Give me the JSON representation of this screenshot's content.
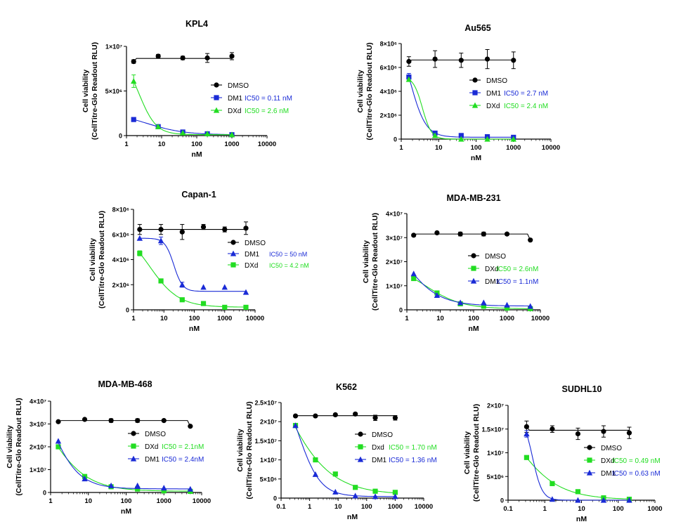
{
  "chart_data": [
    {
      "type": "scatter",
      "title": "KPL4",
      "xlabel": "nM",
      "ylabel": [
        "Cell viability",
        "(CellTitre-Glo Readout RLU)"
      ],
      "xscale": "log",
      "xticks": [
        1,
        10,
        100,
        1000,
        10000
      ],
      "xtick_labels": [
        "1",
        "10",
        "100",
        "1000",
        "10000"
      ],
      "yticks": [
        0,
        5000000,
        10000000
      ],
      "ytick_labels": [
        "0",
        "5×10⁶",
        "1×10⁷"
      ],
      "ylim": [
        0,
        10000000
      ],
      "legend_position": "right",
      "series": [
        {
          "name": "DMSO",
          "ic50": "",
          "color": "#000000",
          "marker": "circle",
          "x": [
            1.6,
            8,
            40,
            200,
            1000
          ],
          "y": [
            8300000,
            8900000,
            8700000,
            8700000,
            8900000
          ],
          "err": [
            200000,
            200000,
            200000,
            500000,
            400000
          ]
        },
        {
          "name": "DM1",
          "ic50": "IC50 = 0.11 nM",
          "color": "#1a2bd6",
          "marker": "square",
          "x": [
            1.6,
            8,
            40,
            200,
            1000
          ],
          "y": [
            1800000,
            1000000,
            400000,
            200000,
            100000
          ],
          "err": [
            0,
            0,
            0,
            0,
            0
          ]
        },
        {
          "name": "DXd",
          "ic50": "IC50 = 2.6 nM",
          "color": "#22dd22",
          "marker": "triangle",
          "x": [
            1.6,
            8,
            40,
            200,
            1000
          ],
          "y": [
            6100000,
            1000000,
            300000,
            200000,
            100000
          ],
          "err": [
            700000,
            0,
            0,
            0,
            0
          ]
        }
      ]
    },
    {
      "type": "scatter",
      "title": "Au565",
      "xlabel": "nM",
      "ylabel": [
        "Cell viability",
        "(CellTitre-Glo Readout RLU)"
      ],
      "xscale": "log",
      "xticks": [
        1,
        10,
        100,
        1000,
        10000
      ],
      "xtick_labels": [
        "1",
        "10",
        "100",
        "1000",
        "10000"
      ],
      "yticks": [
        0,
        2000000,
        4000000,
        6000000,
        8000000
      ],
      "ytick_labels": [
        "0",
        "2×10⁶",
        "4×10⁶",
        "6×10⁶",
        "8×10⁶"
      ],
      "ylim": [
        0,
        8000000
      ],
      "legend_position": "right",
      "series": [
        {
          "name": "DMSO",
          "ic50": "",
          "color": "#000000",
          "marker": "circle",
          "x": [
            1.6,
            8,
            40,
            200,
            1000
          ],
          "y": [
            6500000,
            6700000,
            6600000,
            6700000,
            6600000
          ],
          "err": [
            400000,
            700000,
            600000,
            800000,
            700000
          ]
        },
        {
          "name": "DM1",
          "ic50": "IC50 = 2.7 nM",
          "color": "#1a2bd6",
          "marker": "square",
          "x": [
            1.6,
            8,
            40,
            200,
            1000
          ],
          "y": [
            5200000,
            500000,
            300000,
            200000,
            150000
          ],
          "err": [
            300000,
            0,
            0,
            0,
            0
          ]
        },
        {
          "name": "DXd",
          "ic50": "IC50 = 2.4 nM",
          "color": "#22dd22",
          "marker": "triangle",
          "x": [
            1.6,
            8,
            40,
            200,
            1000
          ],
          "y": [
            5000000,
            300000,
            0,
            0,
            0
          ],
          "err": [
            0,
            0,
            0,
            0,
            0
          ]
        }
      ]
    },
    {
      "type": "scatter",
      "title": "Capan-1",
      "xlabel": "nM",
      "ylabel": [
        "Cell viability",
        "(CellTitre-Glo Readout RLU)"
      ],
      "xscale": "log",
      "xticks": [
        1,
        10,
        100,
        1000,
        10000
      ],
      "xtick_labels": [
        "1",
        "10",
        "100",
        "1000",
        "10000"
      ],
      "yticks": [
        0,
        2000000,
        4000000,
        6000000,
        8000000
      ],
      "ytick_labels": [
        "0",
        "2×10⁶",
        "4×10⁶",
        "6×10⁶",
        "8×10⁶"
      ],
      "ylim": [
        0,
        8000000
      ],
      "legend_position": "right",
      "series": [
        {
          "name": "DMSO",
          "ic50": "",
          "color": "#000000",
          "marker": "circle",
          "x": [
            1.6,
            8,
            40,
            200,
            1000,
            5000
          ],
          "y": [
            6400000,
            6400000,
            6200000,
            6600000,
            6400000,
            6500000
          ],
          "err": [
            400000,
            400000,
            600000,
            200000,
            200000,
            500000
          ]
        },
        {
          "name": "DM1",
          "ic50": "IC50 = 50 nM",
          "color": "#1a2bd6",
          "marker": "triangle",
          "x": [
            1.6,
            8,
            40,
            200,
            1000,
            5000
          ],
          "y": [
            5700000,
            5500000,
            2000000,
            1800000,
            1800000,
            1400000
          ],
          "err": [
            0,
            300000,
            200000,
            0,
            0,
            0
          ]
        },
        {
          "name": "DXd",
          "ic50": "IC50 = 4.2 nM",
          "color": "#22dd22",
          "marker": "square",
          "x": [
            1.6,
            8,
            40,
            200,
            1000,
            5000
          ],
          "y": [
            4500000,
            2300000,
            800000,
            500000,
            200000,
            200000
          ],
          "err": [
            200000,
            0,
            0,
            0,
            0,
            0
          ]
        }
      ]
    },
    {
      "type": "scatter",
      "title": "MDA-MB-231",
      "xlabel": "nM",
      "ylabel": [
        "Cell viability",
        "(CellTitre-Glo Readout RLU)"
      ],
      "xscale": "log",
      "xticks": [
        1,
        10,
        100,
        1000,
        10000
      ],
      "xtick_labels": [
        "1",
        "10",
        "100",
        "1000",
        "10000"
      ],
      "yticks": [
        0,
        10000000,
        20000000,
        30000000,
        40000000
      ],
      "ytick_labels": [
        "0",
        "1×10⁷",
        "2×10⁷",
        "3×10⁷",
        "4×10⁷"
      ],
      "ylim": [
        0,
        40000000
      ],
      "legend_position": "right",
      "series": [
        {
          "name": "DMSO",
          "ic50": "",
          "color": "#000000",
          "marker": "circle",
          "x": [
            1.6,
            8,
            40,
            200,
            1000,
            5000
          ],
          "y": [
            31000000,
            32000000,
            31500000,
            31500000,
            31500000,
            29000000
          ],
          "err": [
            0,
            0,
            800000,
            800000,
            0,
            0
          ]
        },
        {
          "name": "DXd",
          "ic50": "IC50 = 2.6nM",
          "color": "#22dd22",
          "marker": "square",
          "x": [
            1.6,
            8,
            40,
            200,
            1000,
            5000
          ],
          "y": [
            13000000,
            7000000,
            2500000,
            1500000,
            700000,
            500000
          ],
          "err": [
            0,
            0,
            0,
            0,
            0,
            0
          ]
        },
        {
          "name": "DM1",
          "ic50": "IC50 = 1.1nM",
          "color": "#1a2bd6",
          "marker": "triangle",
          "x": [
            1.6,
            8,
            40,
            200,
            1000,
            5000
          ],
          "y": [
            15000000,
            6000000,
            3000000,
            3000000,
            2000000,
            1500000
          ],
          "err": [
            0,
            0,
            0,
            0,
            0,
            0
          ]
        }
      ]
    },
    {
      "type": "scatter",
      "title": "MDA-MB-468",
      "xlabel": "nM",
      "ylabel": [
        "Cell viability",
        "(CellTitre-Glo Readout RLU)"
      ],
      "xscale": "log",
      "xticks": [
        1,
        10,
        100,
        1000,
        10000
      ],
      "xtick_labels": [
        "1",
        "10",
        "100",
        "1000",
        "10000"
      ],
      "yticks": [
        0,
        10000000,
        20000000,
        30000000,
        40000000
      ],
      "ytick_labels": [
        "0",
        "1×10⁷",
        "2×10⁷",
        "3×10⁷",
        "4×10⁷"
      ],
      "ylim": [
        0,
        40000000
      ],
      "legend_position": "right",
      "series": [
        {
          "name": "DMSO",
          "ic50": "",
          "color": "#000000",
          "marker": "circle",
          "x": [
            1.6,
            8,
            40,
            200,
            1000,
            5000
          ],
          "y": [
            31000000,
            32000000,
            31500000,
            31500000,
            31500000,
            29000000
          ],
          "err": [
            0,
            0,
            800000,
            800000,
            0,
            0
          ]
        },
        {
          "name": "DXd",
          "ic50": "IC50 = 2.1nM",
          "color": "#22dd22",
          "marker": "square",
          "x": [
            1.6,
            8,
            40,
            200,
            1000,
            5000
          ],
          "y": [
            20000000,
            7000000,
            2500000,
            1500000,
            700000,
            500000
          ],
          "err": [
            0,
            0,
            0,
            0,
            0,
            0
          ]
        },
        {
          "name": "DM1",
          "ic50": "IC50 = 2.4nM",
          "color": "#1a2bd6",
          "marker": "triangle",
          "x": [
            1.6,
            8,
            40,
            200,
            1000,
            5000
          ],
          "y": [
            22500000,
            6000000,
            3000000,
            3000000,
            2000000,
            1500000
          ],
          "err": [
            0,
            0,
            0,
            0,
            0,
            0
          ]
        }
      ]
    },
    {
      "type": "scatter",
      "title": "K562",
      "xlabel": "nM",
      "ylabel": [
        "Cell viability",
        "(CellTitre-Glo Readout RLU)"
      ],
      "xscale": "log",
      "xticks": [
        0.1,
        1,
        10,
        100,
        1000,
        10000
      ],
      "xtick_labels": [
        "0.1",
        "1",
        "10",
        "100",
        "1000",
        "10000"
      ],
      "yticks": [
        0,
        5000000,
        10000000,
        15000000,
        20000000,
        25000000
      ],
      "ytick_labels": [
        "0",
        "5×10⁶",
        "1×10⁷",
        "1.5×10⁷",
        "2×10⁷",
        "2.5×10⁷"
      ],
      "ylim": [
        0,
        25000000
      ],
      "legend_position": "right",
      "series": [
        {
          "name": "DMSO",
          "ic50": "",
          "color": "#000000",
          "marker": "circle",
          "x": [
            0.32,
            1.6,
            8,
            40,
            200,
            1000
          ],
          "y": [
            21500000,
            21500000,
            21800000,
            22000000,
            21000000,
            21000000
          ],
          "err": [
            0,
            0,
            300000,
            300000,
            700000,
            600000
          ]
        },
        {
          "name": "Dxd",
          "ic50": "IC50 = 1.70 nM",
          "color": "#22dd22",
          "marker": "square",
          "x": [
            0.32,
            1.6,
            8,
            40,
            200,
            1000
          ],
          "y": [
            19000000,
            10000000,
            6300000,
            2800000,
            1800000,
            1500000
          ],
          "err": [
            0,
            0,
            0,
            0,
            0,
            0
          ]
        },
        {
          "name": "DM1",
          "ic50": "IC50 = 1.36 nM",
          "color": "#1a2bd6",
          "marker": "triangle",
          "x": [
            0.32,
            1.6,
            8,
            40,
            200,
            1000
          ],
          "y": [
            19000000,
            6200000,
            1600000,
            600000,
            400000,
            400000
          ],
          "err": [
            0,
            0,
            0,
            0,
            0,
            0
          ]
        }
      ]
    },
    {
      "type": "scatter",
      "title": "SUDHL10",
      "xlabel": "nM",
      "ylabel": [
        "Cell viability",
        "(CellTitre-Glo Readout RLU)"
      ],
      "xscale": "log",
      "xticks": [
        0.1,
        1,
        10,
        100,
        1000
      ],
      "xtick_labels": [
        "0.1",
        "1",
        "10",
        "100",
        "1000"
      ],
      "yticks": [
        0,
        5000000,
        10000000,
        15000000,
        20000000
      ],
      "ytick_labels": [
        "0",
        "5×10⁶",
        "1×10⁷",
        "1.5×10⁷",
        "2×10⁷"
      ],
      "ylim": [
        0,
        20000000
      ],
      "legend_position": "right",
      "series": [
        {
          "name": "DMSO",
          "ic50": "",
          "color": "#000000",
          "marker": "circle",
          "x": [
            0.32,
            1.6,
            8,
            40,
            200
          ],
          "y": [
            15500000,
            15000000,
            14000000,
            14500000,
            14200000
          ],
          "err": [
            1200000,
            700000,
            1200000,
            1200000,
            1200000
          ]
        },
        {
          "name": "DXd",
          "ic50": "IC50 = 0.49 nM",
          "color": "#22dd22",
          "marker": "square",
          "x": [
            0.32,
            1.6,
            8,
            40,
            200
          ],
          "y": [
            9000000,
            3500000,
            1800000,
            500000,
            200000
          ],
          "err": [
            0,
            0,
            0,
            0,
            0
          ]
        },
        {
          "name": "DM1",
          "ic50": "IC50 = 0.63 nM",
          "color": "#1a2bd6",
          "marker": "triangle",
          "x": [
            0.32,
            1.6,
            8,
            40,
            200
          ],
          "y": [
            14000000,
            200000,
            0,
            0,
            0
          ],
          "err": [
            700000,
            0,
            0,
            0,
            0
          ]
        }
      ]
    }
  ]
}
